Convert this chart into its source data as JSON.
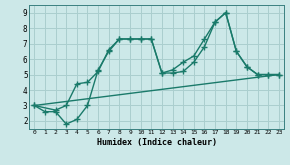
{
  "background_color": "#cce8e8",
  "grid_color": "#aacece",
  "line_color": "#1a7a6a",
  "xlabel": "Humidex (Indice chaleur)",
  "xlim": [
    -0.5,
    23.5
  ],
  "ylim": [
    1.5,
    9.5
  ],
  "yticks": [
    2,
    3,
    4,
    5,
    6,
    7,
    8,
    9
  ],
  "xticks": [
    0,
    1,
    2,
    3,
    4,
    5,
    6,
    7,
    8,
    9,
    10,
    11,
    12,
    13,
    14,
    15,
    16,
    17,
    18,
    19,
    20,
    21,
    22,
    23
  ],
  "line1_x": [
    0,
    1,
    2,
    3,
    4,
    5,
    6,
    7,
    8,
    9,
    10,
    11,
    12,
    13,
    14,
    15,
    16,
    17,
    18,
    19,
    20,
    21,
    22,
    23
  ],
  "line1_y": [
    3.0,
    2.6,
    2.6,
    1.8,
    2.1,
    3.0,
    5.3,
    6.5,
    7.3,
    7.3,
    7.3,
    7.3,
    5.1,
    5.1,
    5.2,
    5.8,
    6.8,
    8.4,
    9.0,
    6.5,
    5.5,
    5.0,
    5.0,
    5.0
  ],
  "line2_x": [
    0,
    2,
    3,
    4,
    5,
    6,
    7,
    8,
    9,
    10,
    11,
    12,
    13,
    14,
    15,
    16,
    17,
    18,
    19,
    20,
    21,
    22,
    23
  ],
  "line2_y": [
    3.0,
    2.7,
    3.0,
    4.4,
    4.5,
    5.2,
    6.6,
    7.3,
    7.3,
    7.3,
    7.3,
    5.1,
    5.3,
    5.8,
    6.2,
    7.3,
    8.4,
    9.0,
    6.5,
    5.5,
    5.0,
    5.0,
    5.0
  ],
  "line3_x": [
    0,
    23
  ],
  "line3_y": [
    3.0,
    5.0
  ],
  "marker_symbol": "+",
  "marker_size": 4,
  "line_width": 1.0
}
